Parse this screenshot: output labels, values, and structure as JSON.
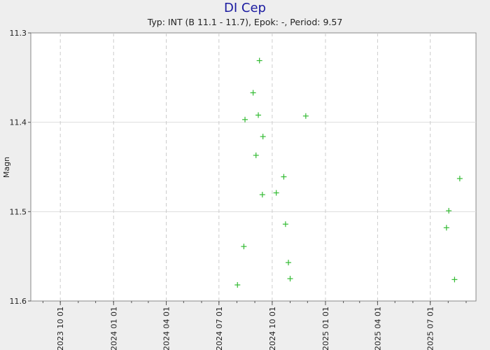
{
  "chart_data": {
    "type": "scatter",
    "title": "DI Cep",
    "subtitle": "Typ: INT (B 11.1 - 11.7), Epok: -, Period: 9.57",
    "ylabel": "Magn",
    "xlabel": "",
    "ylim": [
      11.3,
      11.6
    ],
    "y_inverted": true,
    "y_ticks": [
      "11.3",
      "11.4",
      "11.5",
      "11.6"
    ],
    "xlim": [
      "2023-08-11",
      "2025-09-18"
    ],
    "x_ticks": [
      "2023 10 01",
      "2024 01 01",
      "2024 04 01",
      "2024 07 01",
      "2024 10 01",
      "2025 01 01",
      "2025 04 01",
      "2025 07 01"
    ],
    "grid": true,
    "marker": "+",
    "marker_color": "#33bb33",
    "series": [
      {
        "name": "",
        "points": [
          {
            "x": "2024-08-02",
            "y": 11.582
          },
          {
            "x": "2024-08-13",
            "y": 11.539
          },
          {
            "x": "2024-08-15",
            "y": 11.397
          },
          {
            "x": "2024-08-29",
            "y": 11.367
          },
          {
            "x": "2024-09-03",
            "y": 11.437
          },
          {
            "x": "2024-09-07",
            "y": 11.392
          },
          {
            "x": "2024-09-09",
            "y": 11.331
          },
          {
            "x": "2024-09-14",
            "y": 11.481
          },
          {
            "x": "2024-09-15",
            "y": 11.416
          },
          {
            "x": "2024-10-08",
            "y": 11.479
          },
          {
            "x": "2024-10-21",
            "y": 11.461
          },
          {
            "x": "2024-10-24",
            "y": 11.514
          },
          {
            "x": "2024-10-29",
            "y": 11.557
          },
          {
            "x": "2024-11-01",
            "y": 11.575
          },
          {
            "x": "2024-11-28",
            "y": 11.393
          },
          {
            "x": "2025-07-29",
            "y": 11.518
          },
          {
            "x": "2025-08-02",
            "y": 11.499
          },
          {
            "x": "2025-08-12",
            "y": 11.576
          },
          {
            "x": "2025-08-21",
            "y": 11.463
          }
        ]
      }
    ]
  }
}
